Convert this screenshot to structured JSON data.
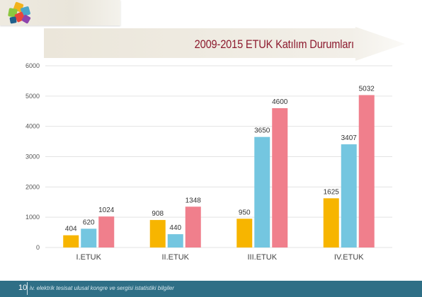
{
  "header": {
    "title": "2009-2015 ETUK Katılım Durumları"
  },
  "footer": {
    "page_number": "10",
    "text": "iv. elektrik tesisat ulusal kongre ve sergisi istatistiki bilgiler"
  },
  "colors": {
    "series_1": "#f7b500",
    "series_2": "#74c6e0",
    "series_3": "#f07f8c",
    "title": "#8c1a2e",
    "footer": "#2f6f86"
  },
  "chart_data": {
    "type": "bar",
    "title": "2009-2015 ETUK Katılım Durumları",
    "xlabel": "",
    "ylabel": "",
    "categories": [
      "I.ETUK",
      "II.ETUK",
      "III.ETUK",
      "IV.ETUK"
    ],
    "series": [
      {
        "values": [
          404,
          908,
          950,
          1625
        ],
        "color": "#f7b500"
      },
      {
        "values": [
          620,
          440,
          3650,
          3407
        ],
        "color": "#74c6e0"
      },
      {
        "values": [
          1024,
          1348,
          4600,
          5032
        ],
        "color": "#f07f8c"
      }
    ],
    "ylim": [
      0,
      6000
    ],
    "yticks": [
      0,
      1000,
      2000,
      3000,
      4000,
      5000,
      6000
    ],
    "grid": true,
    "legend": "none"
  }
}
